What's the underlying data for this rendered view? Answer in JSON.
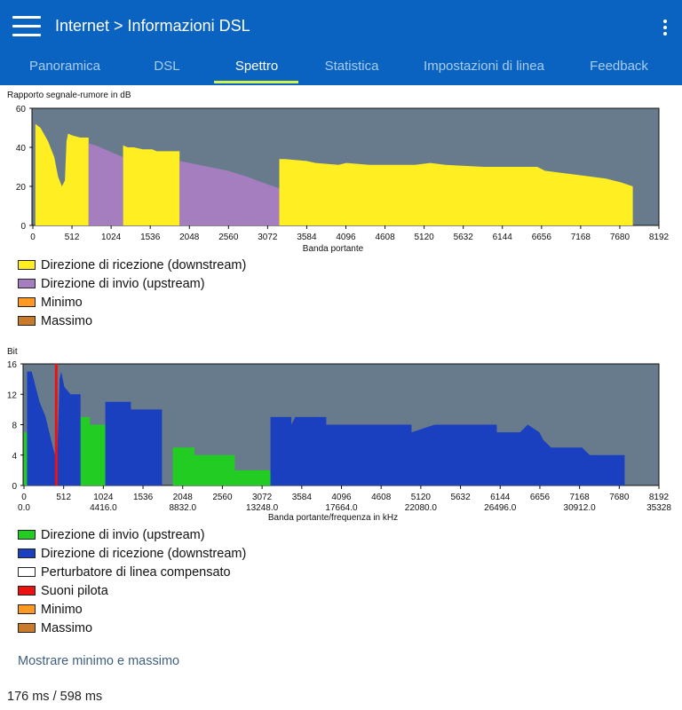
{
  "header": {
    "breadcrumb": "Internet > Informazioni DSL"
  },
  "tabs": [
    {
      "label": "Panoramica",
      "active": false
    },
    {
      "label": "DSL",
      "active": false
    },
    {
      "label": "Spettro",
      "active": true
    },
    {
      "label": "Statistica",
      "active": false
    },
    {
      "label": "Impostazioni di linea",
      "active": false
    },
    {
      "label": "Feedback",
      "active": false
    }
  ],
  "colors": {
    "accent": "#0b63c1",
    "plot_bg": "#687b8c",
    "downstream_snr": "#ffee22",
    "upstream_snr": "#a57ec0",
    "upstream_bits": "#22cc22",
    "downstream_bits": "#1a3fbf",
    "pilot": "#ee1111",
    "crosstalk": "#ffffff",
    "minimum": "#ff9922",
    "maximum": "#c97a2a"
  },
  "chart1": {
    "title": "Rapporto segnale-rumore in dB",
    "legend": [
      {
        "label": "Direzione di ricezione (downstream)",
        "color": "#ffee22"
      },
      {
        "label": "Direzione di invio (upstream)",
        "color": "#a57ec0"
      },
      {
        "label": "Minimo",
        "color": "#ff9922"
      },
      {
        "label": "Massimo",
        "color": "#c97a2a"
      }
    ]
  },
  "chart2": {
    "title": "Bit",
    "legend": [
      {
        "label": "Direzione di invio (upstream)",
        "color": "#22cc22"
      },
      {
        "label": "Direzione di ricezione (downstream)",
        "color": "#1a3fbf"
      },
      {
        "label": "Perturbatore di linea compensato",
        "color": "#ffffff"
      },
      {
        "label": "Suoni pilota",
        "color": "#ee1111"
      },
      {
        "label": "Minimo",
        "color": "#ff9922"
      },
      {
        "label": "Massimo",
        "color": "#c97a2a"
      }
    ]
  },
  "chart_data": [
    {
      "type": "area",
      "title": "Rapporto segnale-rumore in dB",
      "xlabel": "Banda portante",
      "ylabel": "dB",
      "xlim": [
        0,
        8192
      ],
      "ylim": [
        0,
        60
      ],
      "yticks": [
        0,
        20,
        40,
        60
      ],
      "xticks": [
        0,
        512,
        1024,
        1536,
        2048,
        2560,
        3072,
        3584,
        4096,
        4608,
        5120,
        5632,
        6144,
        6656,
        7168,
        7680,
        8192
      ],
      "series": [
        {
          "name": "Direzione di ricezione (downstream)",
          "color": "#ffee22",
          "points": [
            [
              0,
              0
            ],
            [
              32,
              0
            ],
            [
              32,
              52
            ],
            [
              100,
              50
            ],
            [
              200,
              43
            ],
            [
              280,
              35
            ],
            [
              330,
              25
            ],
            [
              380,
              20
            ],
            [
              420,
              23
            ],
            [
              440,
              43
            ],
            [
              460,
              47
            ],
            [
              520,
              46
            ],
            [
              620,
              45
            ],
            [
              730,
              45
            ],
            [
              730,
              0
            ],
            [
              1180,
              0
            ],
            [
              1180,
              41
            ],
            [
              1240,
              40
            ],
            [
              1320,
              40
            ],
            [
              1440,
              39
            ],
            [
              1560,
              39
            ],
            [
              1620,
              38
            ],
            [
              1920,
              38
            ],
            [
              1920,
              0
            ],
            [
              3225,
              0
            ],
            [
              3225,
              34
            ],
            [
              3300,
              34
            ],
            [
              3580,
              33
            ],
            [
              3700,
              32
            ],
            [
              4000,
              31
            ],
            [
              4100,
              32
            ],
            [
              4400,
              31
            ],
            [
              5000,
              31
            ],
            [
              5200,
              32
            ],
            [
              5400,
              31
            ],
            [
              5900,
              30
            ],
            [
              6200,
              30
            ],
            [
              6600,
              30
            ],
            [
              6700,
              28
            ],
            [
              6900,
              27
            ],
            [
              7100,
              26
            ],
            [
              7300,
              25
            ],
            [
              7500,
              24
            ],
            [
              7700,
              22
            ],
            [
              7850,
              20
            ],
            [
              7850,
              0
            ]
          ]
        },
        {
          "name": "Direzione di invio (upstream)",
          "color": "#a57ec0",
          "points": [
            [
              730,
              0
            ],
            [
              730,
              42
            ],
            [
              820,
              41
            ],
            [
              940,
              39
            ],
            [
              1060,
              37
            ],
            [
              1180,
              35
            ],
            [
              1180,
              0
            ],
            [
              1920,
              0
            ],
            [
              1920,
              33
            ],
            [
              2050,
              32
            ],
            [
              2300,
              30
            ],
            [
              2550,
              28
            ],
            [
              2800,
              25
            ],
            [
              3000,
              22
            ],
            [
              3150,
              20
            ],
            [
              3225,
              19
            ],
            [
              3225,
              0
            ]
          ]
        }
      ]
    },
    {
      "type": "area",
      "title": "Bit",
      "xlabel": "Banda portante/frequenza in kHz",
      "ylabel": "Bit",
      "xlim": [
        0,
        8192
      ],
      "ylim": [
        0,
        16
      ],
      "yticks": [
        0,
        4,
        8,
        12,
        16
      ],
      "xticks": [
        0,
        512,
        1024,
        1536,
        2048,
        2560,
        3072,
        3584,
        4096,
        4608,
        5120,
        5632,
        6144,
        6656,
        7168,
        7680,
        8192
      ],
      "freq_labels": [
        "0.0",
        "4416.0",
        "8832.0",
        "13248.0",
        "17664.0",
        "22080.0",
        "26496.0",
        "30912.0",
        "35328"
      ],
      "pilot_tone_carrier": 416,
      "series": [
        {
          "name": "Direzione di invio (upstream)",
          "color": "#22cc22",
          "points": [
            [
              0,
              0
            ],
            [
              0,
              7
            ],
            [
              40,
              7
            ],
            [
              40,
              0
            ],
            [
              730,
              0
            ],
            [
              730,
              9
            ],
            [
              850,
              9
            ],
            [
              850,
              8
            ],
            [
              1050,
              8
            ],
            [
              1050,
              0
            ],
            [
              1920,
              0
            ],
            [
              1920,
              5
            ],
            [
              2200,
              5
            ],
            [
              2200,
              4
            ],
            [
              2720,
              4
            ],
            [
              2720,
              2
            ],
            [
              3180,
              2
            ],
            [
              3180,
              0
            ]
          ]
        },
        {
          "name": "Direzione di ricezione (downstream)",
          "color": "#1a3fbf",
          "points": [
            [
              40,
              0
            ],
            [
              40,
              15
            ],
            [
              100,
              15
            ],
            [
              150,
              13
            ],
            [
              200,
              11
            ],
            [
              280,
              9
            ],
            [
              350,
              6
            ],
            [
              400,
              4
            ],
            [
              430,
              4
            ],
            [
              460,
              14
            ],
            [
              480,
              15
            ],
            [
              520,
              13
            ],
            [
              600,
              12
            ],
            [
              730,
              12
            ],
            [
              730,
              0
            ],
            [
              1050,
              0
            ],
            [
              1050,
              11
            ],
            [
              1380,
              11
            ],
            [
              1380,
              10
            ],
            [
              1780,
              10
            ],
            [
              1780,
              0
            ],
            [
              3180,
              0
            ],
            [
              3180,
              9
            ],
            [
              3450,
              9
            ],
            [
              3450,
              8
            ],
            [
              3500,
              9
            ],
            [
              3900,
              9
            ],
            [
              3900,
              8
            ],
            [
              4100,
              8
            ],
            [
              5000,
              8
            ],
            [
              5000,
              7
            ],
            [
              5300,
              8
            ],
            [
              6100,
              8
            ],
            [
              6100,
              7
            ],
            [
              6400,
              7
            ],
            [
              6500,
              8
            ],
            [
              6650,
              7
            ],
            [
              6700,
              6
            ],
            [
              6800,
              5
            ],
            [
              7200,
              5
            ],
            [
              7300,
              4
            ],
            [
              7750,
              4
            ],
            [
              7750,
              0
            ]
          ]
        }
      ]
    }
  ],
  "link": "Mostrare minimo e massimo",
  "timing": "176 ms / 598 ms"
}
